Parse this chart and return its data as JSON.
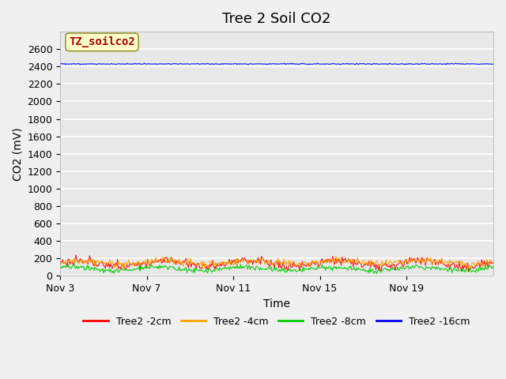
{
  "title": "Tree 2 Soil CO2",
  "xlabel": "Time",
  "ylabel": "CO2 (mV)",
  "ylim": [
    0,
    2800
  ],
  "yticks": [
    0,
    200,
    400,
    600,
    800,
    1000,
    1200,
    1400,
    1600,
    1800,
    2000,
    2200,
    2400,
    2600
  ],
  "xlim_start": 0,
  "xlim_end": 20,
  "x_tick_labels": [
    "Nov 3",
    "Nov 7",
    "Nov 11",
    "Nov 15",
    "Nov 19"
  ],
  "x_tick_positions": [
    0,
    4,
    8,
    12,
    16
  ],
  "background_color": "#e8e8e8",
  "plot_bg_color": "#e8e8e8",
  "series": {
    "Tree2 -2cm": {
      "color": "#ff0000",
      "base": 140,
      "amplitude": 35,
      "noise": 25
    },
    "Tree2 -4cm": {
      "color": "#ffa500",
      "base": 155,
      "amplitude": 20,
      "noise": 20
    },
    "Tree2 -8cm": {
      "color": "#00cc00",
      "base": 80,
      "amplitude": 20,
      "noise": 15
    },
    "Tree2 -16cm": {
      "color": "#0000ff",
      "base": 2430,
      "amplitude": 5,
      "noise": 3
    }
  },
  "n_points": 500,
  "annotation_text": "TZ_soilco2",
  "annotation_bg": "#ffffcc",
  "annotation_border": "#999933",
  "annotation_color": "#aa0000",
  "legend_labels": [
    "Tree2 -2cm",
    "Tree2 -4cm",
    "Tree2 -8cm",
    "Tree2 -16cm"
  ],
  "legend_colors": [
    "#ff0000",
    "#ffa500",
    "#00cc00",
    "#0000ff"
  ],
  "title_fontsize": 13,
  "axis_fontsize": 10,
  "tick_fontsize": 9
}
